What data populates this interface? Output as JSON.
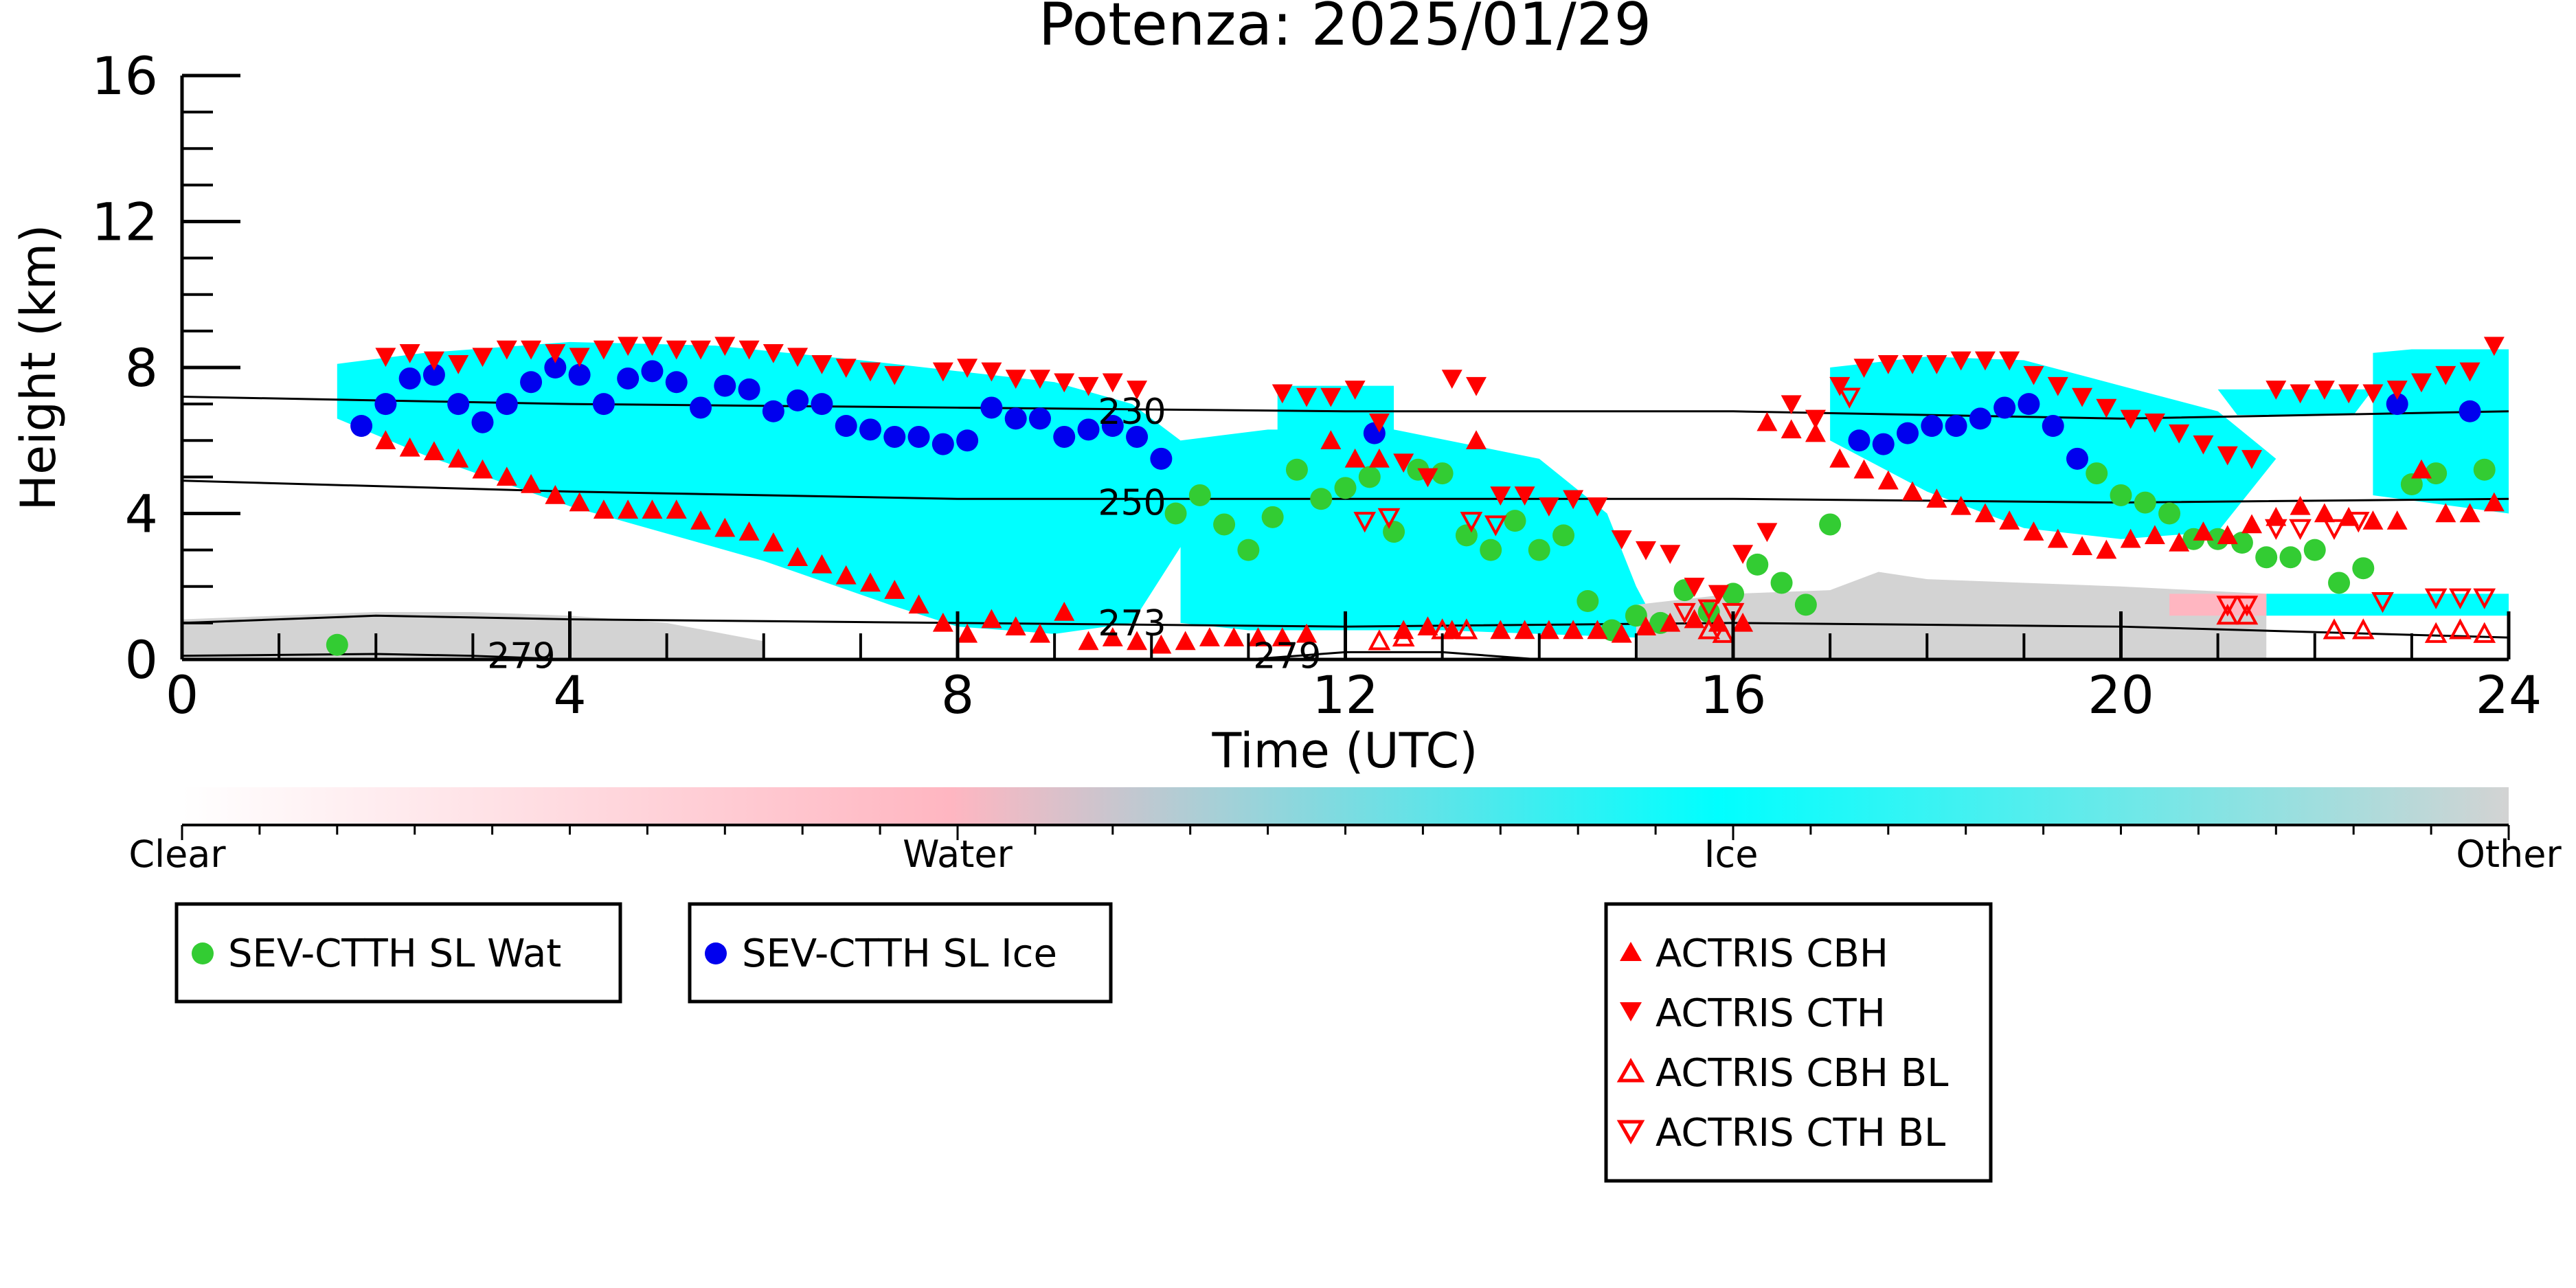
{
  "chart_data": {
    "type": "scatter",
    "title": "Potenza: 2025/01/29",
    "xlabel": "Time (UTC)",
    "ylabel": "Height (km)",
    "xlim": [
      0,
      24
    ],
    "ylim": [
      0,
      16
    ],
    "x_ticks": [
      0,
      4,
      8,
      12,
      16,
      20,
      24
    ],
    "y_ticks": [
      0,
      4,
      8,
      12,
      16
    ],
    "contour_labels": [
      {
        "text": "230",
        "x": 9.8,
        "y": 6.8
      },
      {
        "text": "250",
        "x": 9.8,
        "y": 4.3
      },
      {
        "text": "273",
        "x": 9.8,
        "y": 1.0
      },
      {
        "text": "279",
        "x": 3.5,
        "y": 0.1
      },
      {
        "text": "279",
        "x": 11.4,
        "y": 0.1
      }
    ],
    "contours": [
      {
        "level": "230",
        "x": [
          0,
          4,
          8,
          12,
          16,
          20,
          24
        ],
        "y": [
          7.2,
          7.0,
          6.9,
          6.8,
          6.8,
          6.6,
          6.8
        ]
      },
      {
        "level": "250",
        "x": [
          0,
          4,
          8,
          12,
          16,
          20,
          24
        ],
        "y": [
          4.9,
          4.6,
          4.4,
          4.4,
          4.4,
          4.3,
          4.4
        ]
      },
      {
        "level": "273",
        "x": [
          0,
          2,
          4,
          8,
          12,
          16,
          20,
          24
        ],
        "y": [
          1.0,
          1.2,
          1.1,
          1.0,
          0.9,
          1.0,
          0.9,
          0.6
        ]
      },
      {
        "level": "279",
        "x": [
          0,
          2,
          3,
          4
        ],
        "y": [
          0.1,
          0.15,
          0.1,
          0.0
        ]
      },
      {
        "level": "279",
        "x": [
          11,
          12,
          13,
          14
        ],
        "y": [
          0.0,
          0.2,
          0.2,
          0.0
        ]
      }
    ],
    "classification_colorbar": {
      "labels": [
        "Clear",
        "Water",
        "Ice",
        "Other"
      ],
      "colors": [
        "#ffffff",
        "#ffb6c1",
        "#00ffff",
        "#d3d3d3"
      ]
    },
    "regions": [
      {
        "class": "Ice",
        "color": "#00ffff",
        "x": [
          1.6,
          2.5,
          4.0,
          5.5,
          7.0,
          8.0,
          9.0,
          9.8,
          10.3,
          10.4,
          9.8,
          9.0,
          8.0,
          7.3,
          6.0,
          4.0,
          2.5,
          1.6
        ],
        "y": [
          8.1,
          8.4,
          8.7,
          8.6,
          8.2,
          7.9,
          7.6,
          7.0,
          6.0,
          3.5,
          1.0,
          0.7,
          0.9,
          1.5,
          2.7,
          4.2,
          5.6,
          6.6
        ]
      },
      {
        "class": "Ice",
        "color": "#00ffff",
        "x": [
          10.3,
          11.2,
          12.5,
          14.0,
          14.7,
          15.0,
          15.2,
          15.0,
          13.0,
          11.0,
          10.3
        ],
        "y": [
          6.0,
          6.3,
          6.3,
          5.5,
          4.0,
          2.0,
          1.0,
          0.6,
          0.8,
          0.8,
          1.0
        ]
      },
      {
        "class": "Ice",
        "color": "#00ffff",
        "x": [
          11.3,
          12.5,
          12.5,
          11.3
        ],
        "y": [
          7.5,
          7.5,
          5.8,
          5.8
        ]
      },
      {
        "class": "Ice",
        "color": "#00ffff",
        "x": [
          17.0,
          18.0,
          19.0,
          20.0,
          21.0,
          21.6,
          21.0,
          20.0,
          19.0,
          18.0,
          17.0
        ],
        "y": [
          8.0,
          8.3,
          8.2,
          7.5,
          6.8,
          5.5,
          3.5,
          3.3,
          3.6,
          4.6,
          6.0
        ]
      },
      {
        "class": "Ice",
        "color": "#00ffff",
        "x": [
          22.6,
          23.0,
          24.0,
          24.0,
          22.6
        ],
        "y": [
          8.4,
          8.5,
          8.5,
          4.0,
          4.5
        ]
      },
      {
        "class": "Ice",
        "color": "#00ffff",
        "x": [
          21.0,
          22.0,
          22.6,
          22.4,
          21.2
        ],
        "y": [
          7.4,
          7.4,
          7.4,
          6.7,
          6.7
        ]
      },
      {
        "class": "Ice",
        "color": "#00ffff",
        "x": [
          21.5,
          24.0,
          24.0,
          21.5
        ],
        "y": [
          1.8,
          1.8,
          1.2,
          1.2
        ]
      },
      {
        "class": "Other",
        "color": "#d3d3d3",
        "x": [
          0,
          1.0,
          2.0,
          3.0,
          4.0,
          5.0,
          6.0,
          6.0,
          0
        ],
        "y": [
          1.1,
          1.2,
          1.3,
          1.3,
          1.2,
          1.0,
          0.5,
          0,
          0
        ]
      },
      {
        "class": "Other",
        "color": "#d3d3d3",
        "x": [
          15.0,
          16.0,
          17.0,
          17.5,
          18.0,
          20.0,
          21.5,
          21.5,
          15.0
        ],
        "y": [
          1.5,
          1.8,
          1.9,
          2.4,
          2.2,
          2.0,
          1.8,
          0,
          0
        ]
      },
      {
        "class": "Water",
        "color": "#ffb6c1",
        "x": [
          20.5,
          21.5,
          21.5,
          20.5
        ],
        "y": [
          1.8,
          1.8,
          1.2,
          1.2
        ]
      }
    ],
    "series": [
      {
        "name": "SEV-CTTH SL Wat",
        "marker": "circle",
        "color": "#33cc33",
        "x": [
          1.6,
          10.25,
          10.5,
          10.75,
          11.0,
          11.25,
          11.5,
          11.75,
          12.0,
          12.25,
          12.5,
          12.75,
          13.0,
          13.25,
          13.5,
          13.75,
          14.0,
          14.25,
          14.5,
          14.75,
          15.0,
          15.25,
          15.5,
          15.75,
          16.0,
          16.25,
          16.5,
          16.75,
          17.0,
          19.75,
          20.0,
          20.25,
          20.5,
          20.75,
          21.0,
          21.25,
          21.5,
          21.75,
          22.0,
          22.25,
          22.5,
          23.0,
          23.25,
          23.75
        ],
        "y": [
          0.4,
          4.0,
          4.5,
          3.7,
          3.0,
          3.9,
          5.2,
          4.4,
          4.7,
          5.0,
          3.5,
          5.2,
          5.1,
          3.4,
          3.0,
          3.8,
          3.0,
          3.4,
          1.6,
          0.8,
          1.2,
          1.0,
          1.9,
          1.3,
          1.8,
          2.6,
          2.1,
          1.5,
          3.7,
          5.1,
          4.5,
          4.3,
          4.0,
          3.3,
          3.3,
          3.2,
          2.8,
          2.8,
          3.0,
          2.1,
          2.5,
          4.8,
          5.1,
          5.2
        ]
      },
      {
        "name": "SEV-CTTH SL Ice",
        "marker": "circle",
        "color": "#0000ee",
        "x": [
          1.85,
          2.1,
          2.35,
          2.6,
          2.85,
          3.1,
          3.35,
          3.6,
          3.85,
          4.1,
          4.35,
          4.6,
          4.85,
          5.1,
          5.35,
          5.6,
          5.85,
          6.1,
          6.35,
          6.6,
          6.85,
          7.1,
          7.35,
          7.6,
          7.85,
          8.1,
          8.35,
          8.6,
          8.85,
          9.1,
          9.35,
          9.6,
          9.85,
          10.1,
          12.3,
          17.3,
          17.55,
          17.8,
          18.05,
          18.3,
          18.55,
          18.8,
          19.05,
          19.3,
          19.55,
          22.85,
          23.6
        ],
        "y": [
          6.4,
          7.0,
          7.7,
          7.8,
          7.0,
          6.5,
          7.0,
          7.6,
          8.0,
          7.8,
          7.0,
          7.7,
          7.9,
          7.6,
          6.9,
          7.5,
          7.4,
          6.8,
          7.1,
          7.0,
          6.4,
          6.3,
          6.1,
          6.1,
          5.9,
          6.0,
          6.9,
          6.6,
          6.6,
          6.1,
          6.3,
          6.4,
          6.1,
          5.5,
          6.2,
          6.0,
          5.9,
          6.2,
          6.4,
          6.4,
          6.6,
          6.9,
          7.0,
          6.4,
          5.5,
          7.0,
          6.8
        ]
      },
      {
        "name": "ACTRIS CBH",
        "marker": "triangle-up",
        "color": "#ff0000",
        "filled": true,
        "x": [
          2.1,
          2.35,
          2.6,
          2.85,
          3.1,
          3.35,
          3.6,
          3.85,
          4.1,
          4.35,
          4.6,
          4.85,
          5.1,
          5.35,
          5.6,
          5.85,
          6.1,
          6.35,
          6.6,
          6.85,
          7.1,
          7.35,
          7.6,
          7.85,
          8.1,
          8.35,
          8.6,
          8.85,
          9.1,
          9.35,
          9.6,
          9.85,
          10.1,
          10.35,
          10.6,
          10.85,
          11.1,
          11.35,
          11.6,
          11.85,
          12.1,
          12.35,
          12.6,
          12.85,
          13.1,
          13.35,
          13.6,
          13.85,
          14.1,
          14.35,
          14.6,
          14.85,
          15.1,
          15.35,
          15.6,
          15.85,
          16.1,
          16.35,
          16.6,
          16.85,
          17.1,
          17.35,
          17.6,
          17.85,
          18.1,
          18.35,
          18.6,
          18.85,
          19.1,
          19.35,
          19.6,
          19.85,
          20.1,
          20.35,
          20.6,
          20.85,
          21.1,
          21.35,
          21.6,
          21.85,
          22.1,
          22.35,
          22.6,
          22.85,
          23.1,
          23.35,
          23.6,
          23.85
        ],
        "y": [
          6.0,
          5.8,
          5.7,
          5.5,
          5.2,
          5.0,
          4.8,
          4.5,
          4.3,
          4.1,
          4.1,
          4.1,
          4.1,
          3.8,
          3.6,
          3.5,
          3.2,
          2.8,
          2.6,
          2.3,
          2.1,
          1.9,
          1.5,
          1.0,
          0.7,
          1.1,
          0.9,
          0.7,
          1.3,
          0.5,
          0.6,
          0.5,
          0.4,
          0.5,
          0.6,
          0.6,
          0.6,
          0.6,
          0.7,
          6.0,
          5.5,
          5.5,
          0.8,
          0.9,
          0.8,
          6.0,
          0.8,
          0.8,
          0.8,
          0.8,
          0.8,
          0.7,
          0.9,
          1.0,
          1.1,
          1.0,
          1.0,
          6.5,
          6.3,
          6.2,
          5.5,
          5.2,
          4.9,
          4.6,
          4.4,
          4.2,
          4.0,
          3.8,
          3.5,
          3.3,
          3.1,
          3.0,
          3.3,
          3.4,
          3.2,
          3.5,
          3.4,
          3.7,
          3.9,
          4.2,
          4.0,
          3.9,
          3.8,
          3.8,
          5.2,
          4.0,
          4.0,
          4.3
        ]
      },
      {
        "name": "ACTRIS CTH",
        "marker": "triangle-down",
        "color": "#ff0000",
        "filled": true,
        "x": [
          2.1,
          2.35,
          2.6,
          2.85,
          3.1,
          3.35,
          3.6,
          3.85,
          4.1,
          4.35,
          4.6,
          4.85,
          5.1,
          5.35,
          5.6,
          5.85,
          6.1,
          6.35,
          6.6,
          6.85,
          7.1,
          7.35,
          7.85,
          8.1,
          8.35,
          8.6,
          8.85,
          9.1,
          9.35,
          9.6,
          9.85,
          11.35,
          11.6,
          11.85,
          12.1,
          12.35,
          12.6,
          12.85,
          13.1,
          13.35,
          13.6,
          13.85,
          14.1,
          14.35,
          14.6,
          14.85,
          15.1,
          15.35,
          15.6,
          15.85,
          16.1,
          16.35,
          16.6,
          16.85,
          17.1,
          17.35,
          17.6,
          17.85,
          18.1,
          18.35,
          18.6,
          18.85,
          19.1,
          19.35,
          19.6,
          19.85,
          20.1,
          20.35,
          20.6,
          20.85,
          21.1,
          21.35,
          21.6,
          21.85,
          22.1,
          22.35,
          22.6,
          22.85,
          23.1,
          23.35,
          23.6,
          23.85
        ],
        "y": [
          8.3,
          8.4,
          8.2,
          8.1,
          8.3,
          8.5,
          8.5,
          8.4,
          8.3,
          8.5,
          8.6,
          8.6,
          8.5,
          8.5,
          8.6,
          8.5,
          8.4,
          8.3,
          8.1,
          8.0,
          7.9,
          7.8,
          7.9,
          8.0,
          7.9,
          7.7,
          7.7,
          7.6,
          7.5,
          7.6,
          7.4,
          7.3,
          7.2,
          7.2,
          7.4,
          6.5,
          5.4,
          5.0,
          7.7,
          7.5,
          4.5,
          4.5,
          4.2,
          4.4,
          4.2,
          3.3,
          3.0,
          2.9,
          2.0,
          1.8,
          2.9,
          3.5,
          7.0,
          6.6,
          7.5,
          8.0,
          8.1,
          8.1,
          8.1,
          8.2,
          8.2,
          8.2,
          7.8,
          7.5,
          7.2,
          6.9,
          6.6,
          6.5,
          6.2,
          5.9,
          5.6,
          5.5,
          7.4,
          7.3,
          7.4,
          7.3,
          7.3,
          7.4,
          7.6,
          7.8,
          7.9,
          8.6
        ]
      },
      {
        "name": "ACTRIS CBH BL",
        "marker": "triangle-up",
        "color": "#ff0000",
        "filled": false,
        "x": [
          12.35,
          12.6,
          13.0,
          13.25,
          15.75,
          15.9,
          21.1,
          21.3,
          22.2,
          22.5,
          23.25,
          23.5,
          23.75
        ],
        "y": [
          0.5,
          0.6,
          0.8,
          0.8,
          0.8,
          0.7,
          1.2,
          1.2,
          0.8,
          0.8,
          0.7,
          0.8,
          0.7
        ]
      },
      {
        "name": "ACTRIS CTH BL",
        "marker": "triangle-down",
        "color": "#ff0000",
        "filled": false,
        "x": [
          12.2,
          12.45,
          13.3,
          13.55,
          15.5,
          15.75,
          16.0,
          17.2,
          21.1,
          21.3,
          21.6,
          21.85,
          22.2,
          22.45,
          22.7,
          23.25,
          23.5,
          23.75
        ],
        "y": [
          3.8,
          3.9,
          3.8,
          3.7,
          1.3,
          1.4,
          1.3,
          7.2,
          1.5,
          1.5,
          3.6,
          3.6,
          3.6,
          3.8,
          1.6,
          1.7,
          1.7,
          1.7
        ]
      }
    ]
  },
  "legends": [
    {
      "items": [
        "SEV-CTTH SL Wat"
      ]
    },
    {
      "items": [
        "SEV-CTTH SL Ice"
      ]
    },
    {
      "items": [
        "ACTRIS CBH",
        "ACTRIS CTH",
        "ACTRIS CBH BL",
        "ACTRIS CTH BL"
      ]
    }
  ]
}
